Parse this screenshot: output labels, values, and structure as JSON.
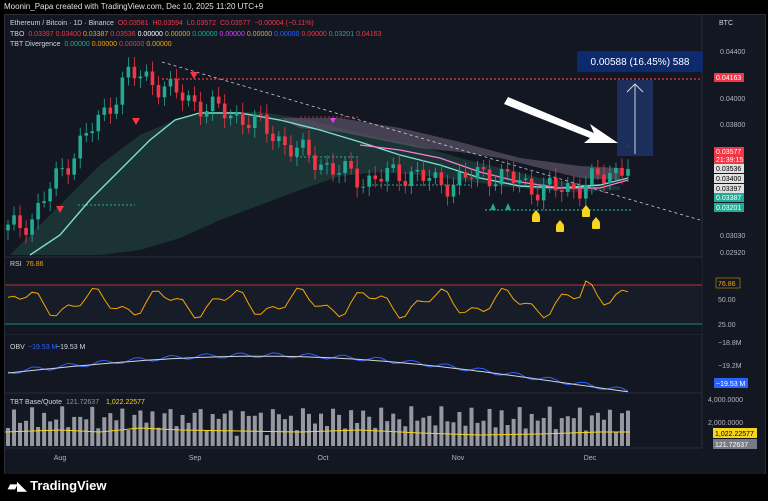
{
  "header": {
    "credit": "Moonin_Papa created with TradingView.com, Dec 10, 2025 11:20 UTC+9"
  },
  "symbol_badge": "BTC",
  "legend": {
    "main": {
      "name": "Ethereum / Bitcoin · 1D · Binance",
      "o": "O0.03581",
      "h": "H0.03594",
      "l": "L0.03572",
      "c": "C0.03577",
      "chg": "−0.00004 (−0.11%)"
    },
    "tbo": {
      "name": "TBO",
      "values": [
        "0.03397",
        "0.03400",
        "0.03387",
        "0.03536",
        "0.00000",
        "0.00000",
        "0.00000",
        "0.00000",
        "0.00000",
        "0.00000",
        "0.00000",
        "0.03201",
        "0.04163"
      ],
      "colors": [
        "#f23645",
        "#f23645",
        "#f7a600",
        "#f23645",
        "#ffffff",
        "#f7a600",
        "#22ab94",
        "#e040fb",
        "#f7a600",
        "#2962ff",
        "#f23645",
        "#22ab94",
        "#f23645"
      ]
    },
    "div": {
      "name": "TBT Divergence",
      "values": [
        "0.00000",
        "0.00000",
        "0.00000",
        "0.00000"
      ],
      "colors": [
        "#22ab94",
        "#f7a600",
        "#f23645",
        "#f7a600"
      ]
    }
  },
  "measure": {
    "label": "0.00588 (16.45%) 588",
    "color": "#0d2a6e"
  },
  "price_axis": {
    "ticks": [
      "0.04400",
      "0.04000",
      "0.03800",
      "0.03030",
      "0.02920"
    ]
  },
  "price_badges": [
    {
      "text": "0.04163",
      "color": "#f23645"
    },
    {
      "text": "0.03577",
      "color": "#f23645"
    },
    {
      "text": "21:39:15",
      "color": "#f23645"
    },
    {
      "text": "0.03536",
      "color": "#e0e0e0"
    },
    {
      "text": "0.03400",
      "color": "#e0e0e0"
    },
    {
      "text": "0.03397",
      "color": "#e0e0e0"
    },
    {
      "text": "0.03387",
      "color": "#22ab94"
    },
    {
      "text": "0.03201",
      "color": "#22ab94"
    }
  ],
  "rsi": {
    "label": "RSI",
    "value": "76.86",
    "axis": [
      "50.00",
      "25.00"
    ]
  },
  "obv": {
    "label": "OBV",
    "values": [
      "−19.53 M",
      "−19.53 M"
    ],
    "axis": [
      "−18.8M",
      "−19.2M"
    ],
    "badge": "−19.53 M"
  },
  "base_quote": {
    "label": "TBT Base/Quote",
    "values": [
      "121.72637",
      "1,022.22577"
    ],
    "axis": [
      "4,000.0000",
      "2,000.0000"
    ],
    "badges": [
      "1,022.22577",
      "121.72637"
    ]
  },
  "time_axis": [
    "Aug",
    "Sep",
    "Oct",
    "Nov",
    "Dec"
  ],
  "footer": {
    "brand": "TradingView"
  },
  "chart_data": {
    "type": "line",
    "title": "Ethereum / Bitcoin · 1D · Binance",
    "x": [
      "Aug",
      "Sep",
      "Oct",
      "Nov",
      "Dec"
    ],
    "close_path_approx": [
      0.031,
      0.0318,
      0.0345,
      0.037,
      0.039,
      0.0418,
      0.0415,
      0.0405,
      0.0398,
      0.0392,
      0.0388,
      0.0378,
      0.0366,
      0.0358,
      0.035,
      0.0345,
      0.0348,
      0.035,
      0.0342,
      0.0345,
      0.035,
      0.0346,
      0.034,
      0.0338,
      0.0341,
      0.0347,
      0.0357
    ],
    "levels": {
      "red_dotted": 0.04163,
      "green_dotted": 0.03201,
      "last": 0.03577
    },
    "rsi_last": 76.86,
    "obv_last_millions": -19.53,
    "measure_change": "0.00588 (16.45%)"
  }
}
